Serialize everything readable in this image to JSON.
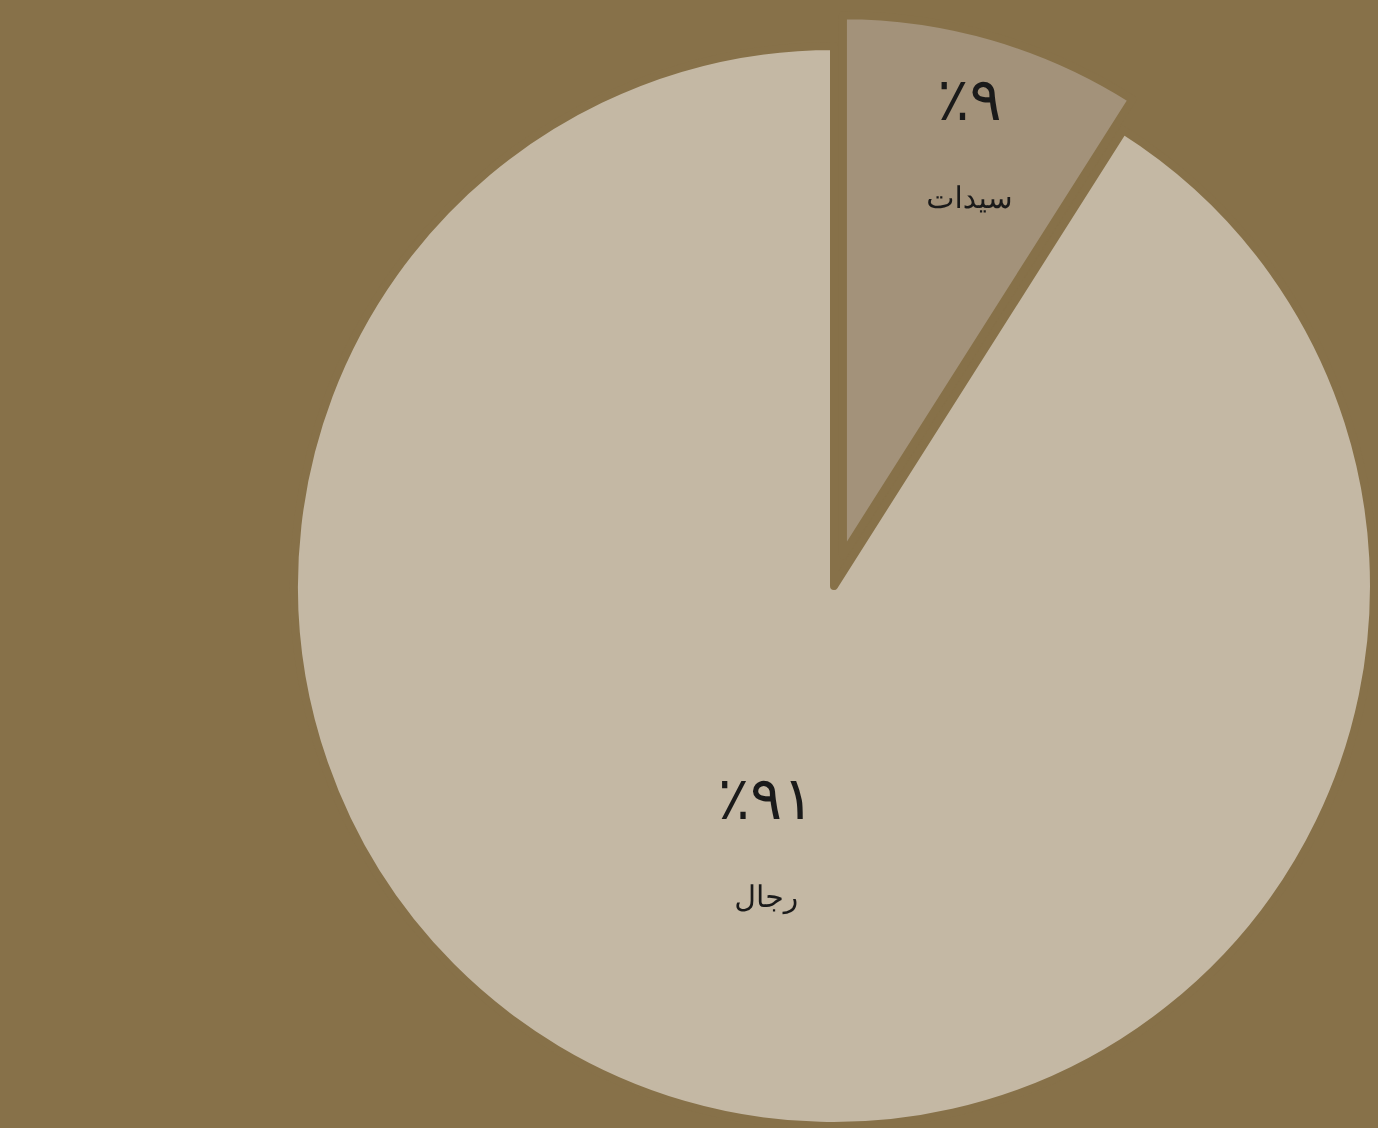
{
  "chart_data": {
    "type": "pie",
    "categories": [
      "سيدات",
      "رجال"
    ],
    "values": [
      9,
      91
    ],
    "value_labels": [
      "٩٪",
      "٩١٪"
    ],
    "colors": [
      "#a3927a",
      "#c4b8a4"
    ]
  }
}
